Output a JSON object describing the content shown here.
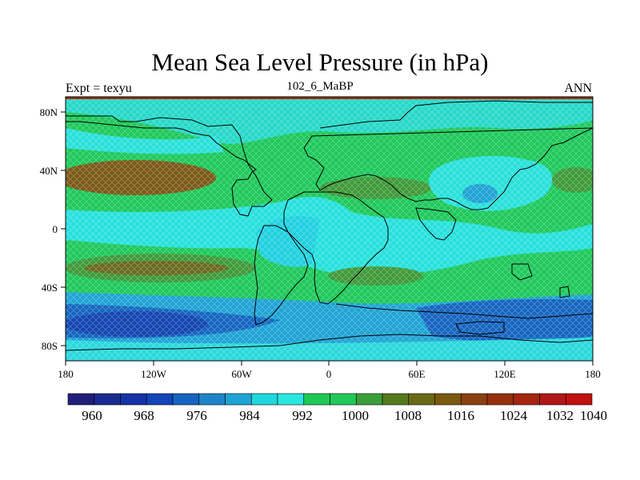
{
  "header": {
    "title": "Mean Sea Level Pressure (in hPa)",
    "left_label": "Expt = texyu",
    "center_label": "102_6_MaBP",
    "right_label": "ANN"
  },
  "axes": {
    "x_ticks": [
      "180",
      "120W",
      "60W",
      "0",
      "60E",
      "120E",
      "180"
    ],
    "y_ticks": [
      "80N",
      "40N",
      "0",
      "40S",
      "80S"
    ]
  },
  "colorbar": {
    "labels": [
      "960",
      "968",
      "976",
      "984",
      "992",
      "1000",
      "1008",
      "1016",
      "1024",
      "1032",
      "1040"
    ],
    "colors": [
      "#20207a",
      "#1a2a90",
      "#1533a5",
      "#1245b8",
      "#1565c0",
      "#1e84c8",
      "#1fa3d4",
      "#1fd7dc",
      "#28e8e0",
      "#1ec855",
      "#22c85a",
      "#3b9e3a",
      "#557a1c",
      "#6a6a14",
      "#7a5a10",
      "#8a4010",
      "#95300f",
      "#a52510",
      "#b01818",
      "#c01010"
    ]
  },
  "colors": {
    "land_outline": "#000000",
    "high_pressure": "#8b4a20",
    "low_pressure": "#1560b8",
    "mid_green": "#22c85a",
    "cyan": "#22e0e0",
    "top_strip": "#a03010"
  }
}
